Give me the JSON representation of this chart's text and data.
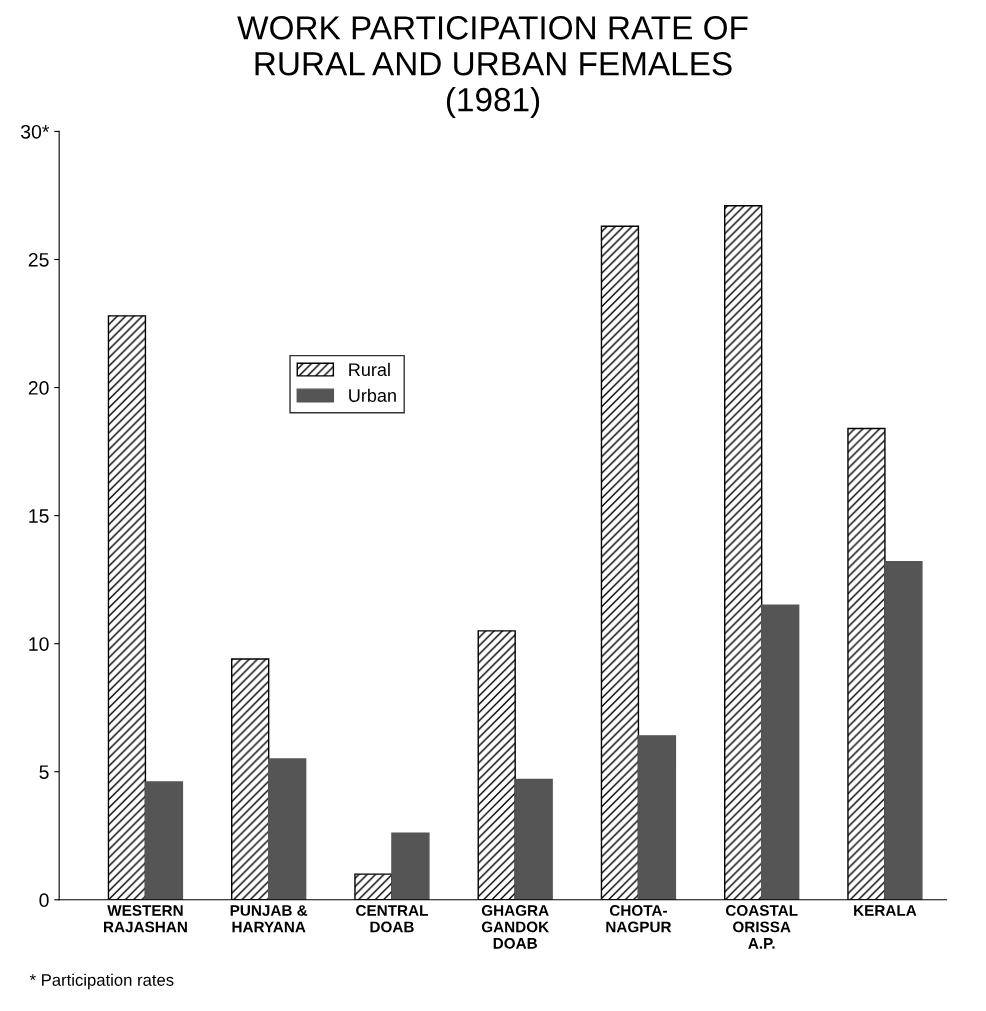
{
  "chart_data": {
    "type": "bar",
    "title": "WORK PARTICIPATION RATE OF\nRURAL AND URBAN FEMALES\n(1981)",
    "categories": [
      "WESTERN\nRAJASHAN",
      "PUNJAB &\nHARYANA",
      "CENTRAL\nDOAB",
      "GHAGRA\nGANDOK\nDOAB",
      "CHOTA-\nNAGPUR",
      "COASTAL\nORISSA\nA.P.",
      "KERALA"
    ],
    "series": [
      {
        "name": "Rural",
        "color": "#000000",
        "values": [
          22.8,
          9.4,
          1.0,
          10.5,
          26.3,
          27.1,
          18.4
        ]
      },
      {
        "name": "Urban",
        "color": "#555555",
        "values": [
          4.6,
          5.5,
          2.6,
          4.7,
          6.4,
          11.5,
          13.2
        ]
      }
    ],
    "ylim": [
      0,
      30
    ],
    "yticks": [
      0,
      5,
      10,
      15,
      20,
      25,
      {
        "value": 30,
        "label": "30*"
      }
    ],
    "grid": false,
    "legend": "top left",
    "annotations": [
      "* Participation rates"
    ]
  }
}
